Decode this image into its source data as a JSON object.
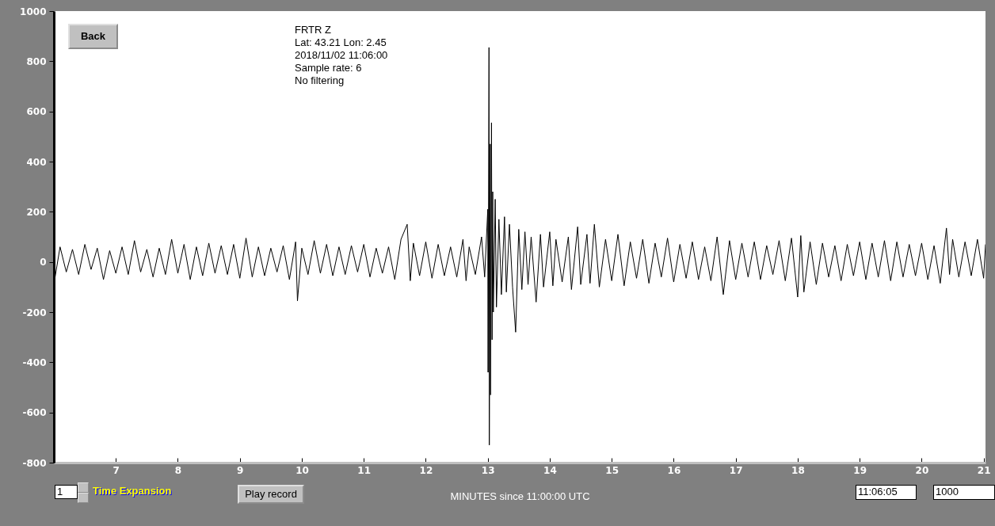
{
  "chart_data": {
    "type": "line",
    "xlabel": "MINUTES since 11:00:00 UTC",
    "annotations": [
      "FRTR  Z",
      "Lat: 43.21 Lon: 2.45",
      "2018/11/02 11:06:00",
      "Sample rate: 6",
      "No filtering",
      "Back",
      "1",
      "Time Expansion",
      "Play record",
      "11:06:05",
      "1000"
    ],
    "xlim": [
      6,
      21.03
    ],
    "xticks": [
      7,
      8,
      9,
      10,
      11,
      12,
      13,
      14,
      15,
      16,
      17,
      18,
      19,
      20,
      21
    ],
    "ylim": [
      -800,
      1000
    ],
    "yticks": [
      -800,
      -600,
      -400,
      -200,
      0,
      200,
      400,
      600,
      800,
      1000
    ],
    "grid": false,
    "x": [
      6.0,
      6.1,
      6.2,
      6.3,
      6.4,
      6.5,
      6.6,
      6.7,
      6.8,
      6.9,
      7.0,
      7.1,
      7.2,
      7.3,
      7.4,
      7.5,
      7.6,
      7.7,
      7.8,
      7.9,
      8.0,
      8.1,
      8.2,
      8.3,
      8.4,
      8.5,
      8.6,
      8.7,
      8.8,
      8.9,
      9.0,
      9.1,
      9.2,
      9.3,
      9.4,
      9.5,
      9.6,
      9.7,
      9.8,
      9.9,
      9.93,
      10.0,
      10.1,
      10.2,
      10.3,
      10.4,
      10.5,
      10.6,
      10.7,
      10.8,
      10.9,
      11.0,
      11.1,
      11.2,
      11.3,
      11.4,
      11.5,
      11.6,
      11.7,
      11.75,
      11.8,
      11.9,
      12.0,
      12.1,
      12.2,
      12.3,
      12.4,
      12.5,
      12.6,
      12.65,
      12.7,
      12.8,
      12.9,
      12.95,
      13.0,
      13.005,
      13.02,
      13.025,
      13.04,
      13.045,
      13.06,
      13.07,
      13.08,
      13.09,
      13.12,
      13.14,
      13.18,
      13.22,
      13.27,
      13.3,
      13.35,
      13.4,
      13.45,
      13.5,
      13.55,
      13.6,
      13.65,
      13.7,
      13.78,
      13.85,
      13.9,
      14.0,
      14.05,
      14.1,
      14.2,
      14.3,
      14.35,
      14.45,
      14.5,
      14.6,
      14.65,
      14.72,
      14.8,
      14.9,
      15.0,
      15.1,
      15.2,
      15.3,
      15.4,
      15.5,
      15.6,
      15.7,
      15.8,
      15.9,
      16.0,
      16.1,
      16.2,
      16.3,
      16.4,
      16.5,
      16.6,
      16.7,
      16.8,
      16.9,
      17.0,
      17.1,
      17.2,
      17.3,
      17.4,
      17.5,
      17.6,
      17.7,
      17.8,
      17.9,
      18.0,
      18.05,
      18.1,
      18.2,
      18.3,
      18.4,
      18.5,
      18.6,
      18.7,
      18.8,
      18.9,
      19.0,
      19.1,
      19.2,
      19.3,
      19.4,
      19.5,
      19.6,
      19.7,
      19.8,
      19.9,
      20.0,
      20.1,
      20.2,
      20.3,
      20.4,
      20.45,
      20.5,
      20.6,
      20.7,
      20.8,
      20.9,
      21.0,
      21.03
    ],
    "series": [
      {
        "color": "#000000",
        "values": [
          -90,
          60,
          -40,
          50,
          -50,
          70,
          -30,
          55,
          -70,
          45,
          -45,
          60,
          -50,
          85,
          -40,
          50,
          -60,
          55,
          -50,
          90,
          -45,
          70,
          -70,
          60,
          -55,
          75,
          -45,
          65,
          -50,
          70,
          -65,
          95,
          -60,
          60,
          -55,
          55,
          -40,
          65,
          -70,
          80,
          -155,
          55,
          -50,
          85,
          -45,
          70,
          -55,
          60,
          -50,
          65,
          -40,
          70,
          -60,
          55,
          -45,
          60,
          -70,
          90,
          150,
          -75,
          75,
          -55,
          80,
          -65,
          70,
          -55,
          60,
          -60,
          90,
          -75,
          60,
          -50,
          100,
          -60,
          210,
          -440,
          855,
          -730,
          470,
          -530,
          555,
          -310,
          280,
          -200,
          250,
          -180,
          170,
          -130,
          180,
          -120,
          150,
          -100,
          -280,
          130,
          -110,
          120,
          -90,
          100,
          -160,
          110,
          -100,
          120,
          -95,
          90,
          -80,
          100,
          -110,
          140,
          -90,
          110,
          -85,
          150,
          -100,
          90,
          -75,
          110,
          -95,
          80,
          -65,
          90,
          -85,
          75,
          -60,
          95,
          -80,
          70,
          -65,
          80,
          -70,
          60,
          -75,
          100,
          -130,
          85,
          -70,
          75,
          -60,
          80,
          -70,
          65,
          -50,
          85,
          -75,
          95,
          -140,
          105,
          -120,
          80,
          -90,
          75,
          -60,
          65,
          -75,
          70,
          -55,
          80,
          -70,
          75,
          -60,
          85,
          -75,
          80,
          -60,
          70,
          -55,
          75,
          -70,
          65,
          -85,
          135,
          -50,
          90,
          -60,
          80,
          -55,
          90,
          -65,
          70
        ]
      }
    ]
  }
}
